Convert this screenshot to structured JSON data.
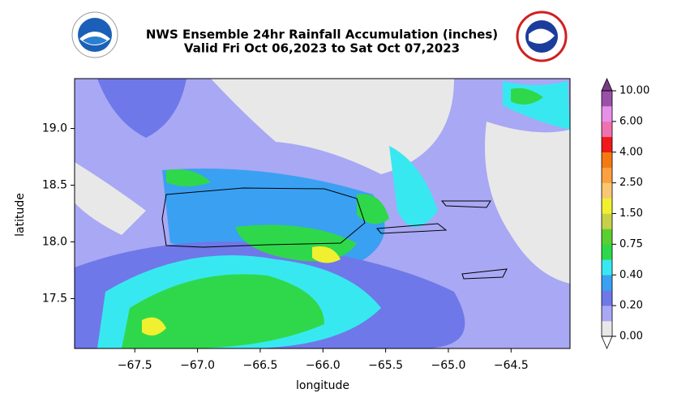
{
  "chart_data": {
    "type": "filled-contour",
    "title": "NWS Ensemble 24hr Rainfall Accumulation (inches)",
    "subtitle": "Valid Fri Oct 06,2023 to Sat Oct 07,2023",
    "x_label": "longitude",
    "y_label": "latitude",
    "xlim": [
      -67.98,
      -64.03
    ],
    "ylim": [
      17.06,
      19.44
    ],
    "xticks": [
      {
        "value": -67.5,
        "label": "−67.5"
      },
      {
        "value": -67.0,
        "label": "−67.0"
      },
      {
        "value": -66.5,
        "label": "−66.5"
      },
      {
        "value": -66.0,
        "label": "−66.0"
      },
      {
        "value": -65.5,
        "label": "−65.5"
      },
      {
        "value": -65.0,
        "label": "−65.0"
      },
      {
        "value": -64.5,
        "label": "−64.5"
      }
    ],
    "yticks": [
      {
        "value": 17.5,
        "label": "17.5"
      },
      {
        "value": 18.0,
        "label": "18.0"
      },
      {
        "value": 18.5,
        "label": "18.5"
      },
      {
        "value": 19.0,
        "label": "19.0"
      }
    ],
    "colorbar": {
      "ticks": [
        {
          "value": 0,
          "label": "0.00"
        },
        {
          "value": 0.2,
          "label": "0.20"
        },
        {
          "value": 0.4,
          "label": "0.40"
        },
        {
          "value": 0.75,
          "label": "0.75"
        },
        {
          "value": 1.5,
          "label": "1.50"
        },
        {
          "value": 2.5,
          "label": "2.50"
        },
        {
          "value": 4,
          "label": "4.00"
        },
        {
          "value": 6,
          "label": "6.00"
        },
        {
          "value": 10,
          "label": "10.00"
        }
      ],
      "colors": [
        "#e8e8e8",
        "#a8a8f4",
        "#6f78e8",
        "#3aa0f2",
        "#38e8f0",
        "#2fd84a",
        "#5ad030",
        "#c8d048",
        "#f0f030",
        "#f8c870",
        "#fca040",
        "#f47a10",
        "#f01818",
        "#f070b0",
        "#e890e8",
        "#9a50a8"
      ],
      "under_color": "#ffffff",
      "over_color": "#7a3a8a"
    }
  }
}
